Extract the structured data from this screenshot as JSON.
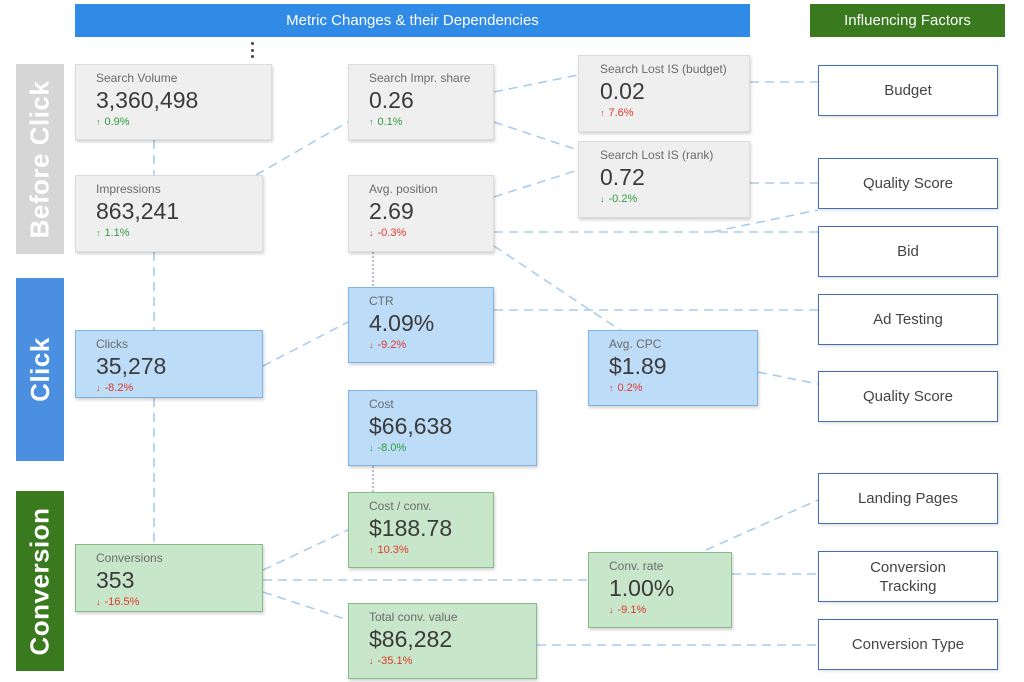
{
  "header": {
    "metrics_title": "Metric Changes & their Dependencies",
    "factors_title": "Influencing Factors"
  },
  "stages": {
    "before_click": "Before Click",
    "click": "Click",
    "conversion": "Conversion"
  },
  "metrics": {
    "search_volume": {
      "label": "Search Volume",
      "value": "3,360,498",
      "change": "0.9%",
      "direction": "up"
    },
    "impressions": {
      "label": "Impressions",
      "value": "863,241",
      "change": "1.1%",
      "direction": "up"
    },
    "search_impr_share": {
      "label": "Search Impr. share",
      "value": "0.26",
      "change": "0.1%",
      "direction": "up"
    },
    "avg_position": {
      "label": "Avg. position",
      "value": "2.69",
      "change": "-0.3%",
      "direction": "down"
    },
    "lost_is_budget": {
      "label": "Search Lost IS (budget)",
      "value": "0.02",
      "change": "7.6%",
      "direction": "up-red"
    },
    "lost_is_rank": {
      "label": "Search Lost IS (rank)",
      "value": "0.72",
      "change": "-0.2%",
      "direction": "down-green"
    },
    "clicks": {
      "label": "Clicks",
      "value": "35,278",
      "change": "-8.2%",
      "direction": "down"
    },
    "ctr": {
      "label": "CTR",
      "value": "4.09%",
      "change": "-9.2%",
      "direction": "down"
    },
    "avg_cpc": {
      "label": "Avg. CPC",
      "value": "$1.89",
      "change": "0.2%",
      "direction": "up-red"
    },
    "cost": {
      "label": "Cost",
      "value": "$66,638",
      "change": "-8.0%",
      "direction": "down-green"
    },
    "conversions": {
      "label": "Conversions",
      "value": "353",
      "change": "-16.5%",
      "direction": "down"
    },
    "cost_per_conv": {
      "label": "Cost / conv.",
      "value": "$188.78",
      "change": "10.3%",
      "direction": "up-red"
    },
    "total_conv_value": {
      "label": "Total conv. value",
      "value": "$86,282",
      "change": "-35.1%",
      "direction": "down"
    },
    "conv_rate": {
      "label": "Conv. rate",
      "value": "1.00%",
      "change": "-9.1%",
      "direction": "down"
    }
  },
  "factors": {
    "budget": "Budget",
    "quality_score_1": "Quality Score",
    "bid": "Bid",
    "ad_testing": "Ad Testing",
    "quality_score_2": "Quality Score",
    "landing_pages": "Landing Pages",
    "conversion_tracking": "Conversion Tracking",
    "conversion_type": "Conversion Type"
  },
  "colors": {
    "header_blue": "#2f8be6",
    "header_green": "#3a7a1e",
    "stage_before": "#d6d6d6",
    "stage_click": "#4a8fe0",
    "stage_conversion": "#3a7a1e",
    "increase": "#2e9e3e",
    "decrease": "#e0392b",
    "connector": "#a9cdef"
  },
  "icons": {
    "up": "arrow-up-icon",
    "down": "arrow-down-icon",
    "menu": "more-vert-icon"
  }
}
